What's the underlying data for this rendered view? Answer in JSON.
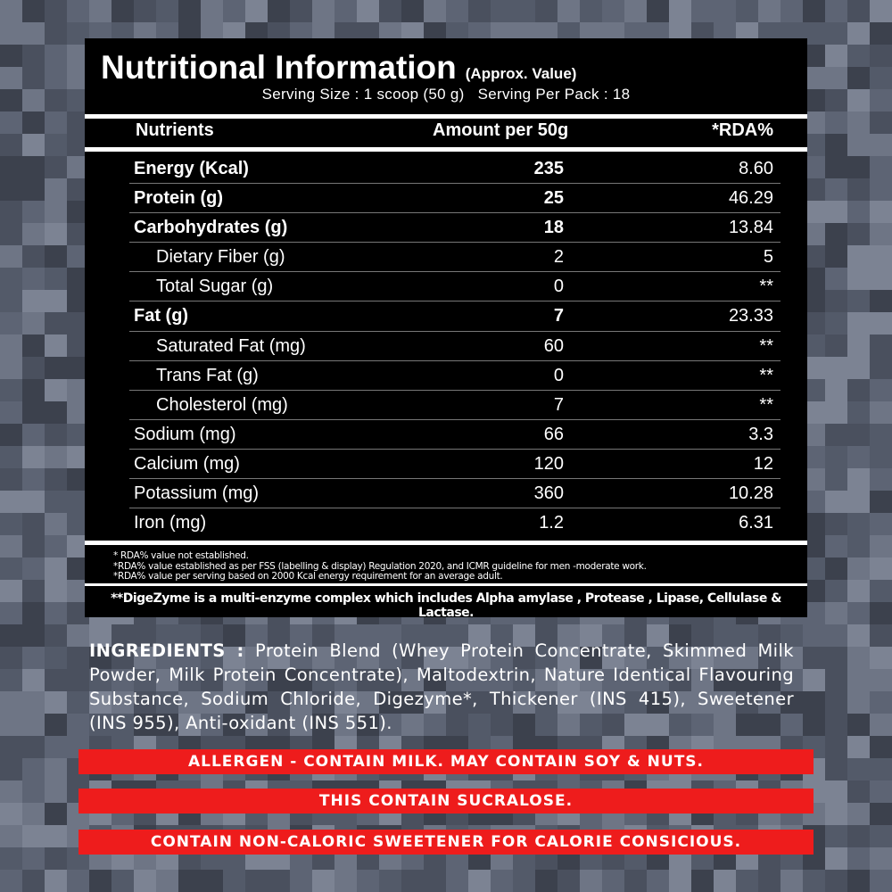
{
  "title": "Nutritional Information",
  "title_note": "(Approx. Value)",
  "serving": "Serving Size : 1 scoop (50 g)   Serving Per Pack : 18",
  "headers": {
    "nutrients": "Nutrients",
    "amount": "Amount per 50g",
    "rda": "*RDA%"
  },
  "rows": [
    {
      "name": "Energy (Kcal)",
      "amount": "235",
      "rda": "8.60"
    },
    {
      "name": "Protein (g)",
      "amount": "25",
      "rda": "46.29"
    },
    {
      "name": "Carbohydrates (g)",
      "amount": "18",
      "rda": "13.84"
    },
    {
      "name": "Dietary Fiber (g)",
      "amount": "2",
      "rda": "5"
    },
    {
      "name": "Total Sugar (g)",
      "amount": "0",
      "rda": "**"
    },
    {
      "name": "Fat (g)",
      "amount": "7",
      "rda": "23.33"
    },
    {
      "name": "Saturated Fat (mg)",
      "amount": "60",
      "rda": "**"
    },
    {
      "name": "Trans Fat (g)",
      "amount": "0",
      "rda": "**"
    },
    {
      "name": "Cholesterol (mg)",
      "amount": "7",
      "rda": "**"
    },
    {
      "name": "Sodium (mg)",
      "amount": "66",
      "rda": "3.3"
    },
    {
      "name": "Calcium (mg)",
      "amount": "120",
      "rda": "12"
    },
    {
      "name": "Potassium (mg)",
      "amount": "360",
      "rda": "10.28"
    },
    {
      "name": "Iron (mg)",
      "amount": "1.2",
      "rda": "6.31"
    }
  ],
  "footnotes": [
    "* RDA% value not established.",
    "*RDA% value established as per FSS (labelling & display) Regulation 2020, and ICMR guideline for men -moderate work.",
    "*RDA% value per serving based on 2000 Kcal energy requirement for an average adult."
  ],
  "digezyme": "**DigeZyme is a multi-enzyme complex which includes Alpha amylase , Protease , Lipase, Cellulase & Lactase.",
  "ingredients_label": "INGREDIENTS :",
  "ingredients": "Protein Blend (Whey Protein Concentrate, Skimmed Milk Powder, Milk Protein Concentrate), Maltodextrin, Nature Identical Flavouring Substance, Sodium Chloride, Digezyme*, Thickener (INS 415), Sweetener (INS 955), Anti-oxidant (INS 551).",
  "warnings": [
    "ALLERGEN - CONTAIN MILK. MAY CONTAIN SOY & NUTS.",
    "THIS CONTAIN SUCRALOSE.",
    "CONTAIN NON-CALORIC SWEETENER FOR CALORIE CONSICIOUS."
  ],
  "colors": {
    "warning_bg": "#ee1c1c",
    "panel": "#000000",
    "background": "#5d6474"
  }
}
